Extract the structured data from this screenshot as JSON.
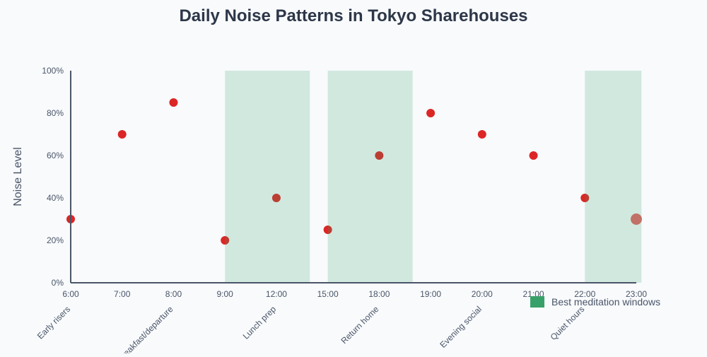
{
  "chart_data": {
    "type": "scatter",
    "title": "Daily Noise Patterns in Tokyo Sharehouses",
    "xlabel": "",
    "ylabel": "Noise Level",
    "categories": [
      "6:00",
      "7:00",
      "8:00",
      "9:00",
      "12:00",
      "15:00",
      "18:00",
      "19:00",
      "20:00",
      "21:00",
      "22:00",
      "23:00"
    ],
    "values": [
      30,
      70,
      85,
      20,
      40,
      25,
      60,
      80,
      70,
      60,
      40,
      30
    ],
    "highlight_last_point": true,
    "ylim": [
      0,
      100
    ],
    "yticks": [
      "0%",
      "20%",
      "40%",
      "60%",
      "80%",
      "100%"
    ],
    "ytick_values": [
      0,
      20,
      40,
      60,
      80,
      100
    ],
    "grid": false,
    "point_color": "#dc2626",
    "band_color": "#38a169",
    "bands_category_index": [
      [
        3,
        4.65
      ],
      [
        5,
        6.65
      ],
      [
        10,
        11.1
      ]
    ],
    "annotations": [
      {
        "category": "6:00",
        "text": "Early risers"
      },
      {
        "category": "8:00",
        "text": "Breakfast/departure"
      },
      {
        "category": "12:00",
        "text": "Lunch prep"
      },
      {
        "category": "18:00",
        "text": "Return home"
      },
      {
        "category": "20:00",
        "text": "Evening social"
      },
      {
        "category": "22:00",
        "text": "Quiet hours"
      }
    ],
    "legend": {
      "label": "Best meditation windows",
      "placement": "bottom-right"
    }
  }
}
